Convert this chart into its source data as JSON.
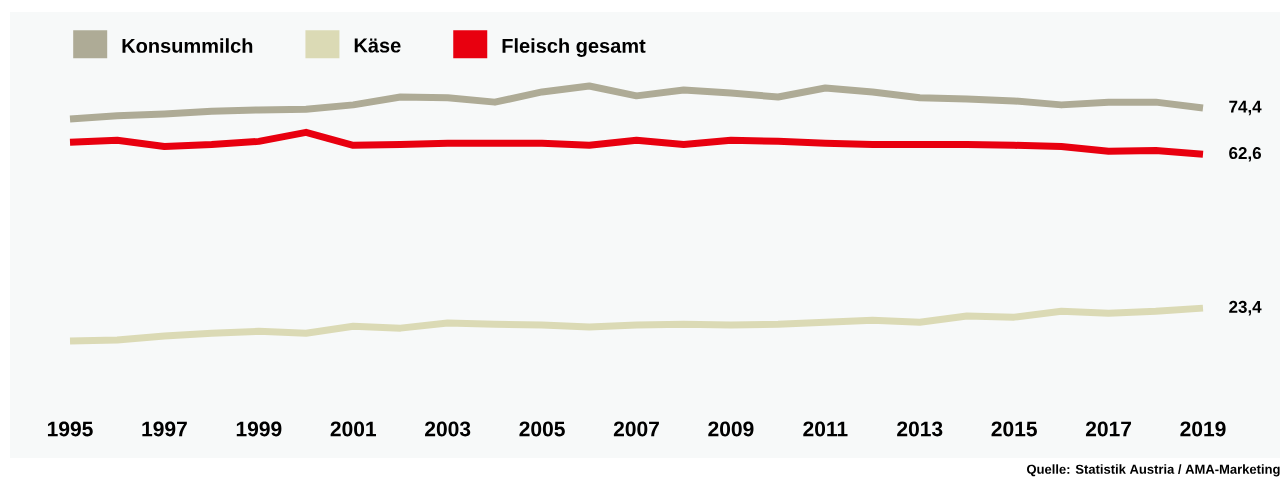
{
  "chart_data": {
    "type": "line",
    "x": [
      1995,
      1996,
      1997,
      1998,
      1999,
      2000,
      2001,
      2002,
      2003,
      2004,
      2005,
      2006,
      2007,
      2008,
      2009,
      2010,
      2011,
      2012,
      2013,
      2014,
      2015,
      2016,
      2017,
      2018,
      2019
    ],
    "xlim": [
      1995,
      2019
    ],
    "xticks": [
      1995,
      1997,
      1999,
      2001,
      2003,
      2005,
      2007,
      2009,
      2011,
      2013,
      2015,
      2017,
      2019
    ],
    "series": [
      {
        "name": "Konsummilch",
        "color": "#aeab96",
        "values": [
          71.6,
          72.4,
          72.9,
          73.6,
          73.9,
          74.1,
          75.2,
          77.2,
          77.0,
          75.9,
          78.5,
          80.0,
          77.5,
          79.0,
          78.2,
          77.2,
          79.5,
          78.5,
          77.0,
          76.7,
          76.2,
          75.2,
          75.9,
          75.9,
          74.4
        ],
        "value_labels": [
          null,
          null,
          null,
          null,
          null,
          null,
          null,
          null,
          null,
          null,
          null,
          null,
          null,
          null,
          null,
          null,
          null,
          null,
          null,
          null,
          null,
          null,
          null,
          null,
          "74,4"
        ]
      },
      {
        "name": "Käse",
        "color": "#dbdab5",
        "values": [
          15.0,
          15.3,
          16.3,
          17.0,
          17.5,
          17.0,
          18.8,
          18.3,
          19.6,
          19.3,
          19.1,
          18.6,
          19.1,
          19.3,
          19.1,
          19.3,
          19.8,
          20.3,
          19.8,
          21.4,
          21.1,
          22.6,
          22.1,
          22.6,
          23.4
        ],
        "value_labels": [
          null,
          null,
          null,
          null,
          null,
          null,
          null,
          null,
          null,
          null,
          null,
          null,
          null,
          null,
          null,
          null,
          null,
          null,
          null,
          null,
          null,
          null,
          null,
          null,
          "23,4"
        ]
      },
      {
        "name": "Fleisch gesamt",
        "color": "#e8000f",
        "values": [
          65.7,
          66.2,
          64.6,
          65.1,
          65.9,
          68.2,
          64.9,
          65.1,
          65.4,
          65.4,
          65.4,
          64.9,
          66.2,
          65.1,
          66.2,
          65.9,
          65.4,
          65.1,
          65.1,
          65.1,
          64.9,
          64.6,
          63.4,
          63.6,
          62.6
        ],
        "value_labels": [
          null,
          null,
          null,
          null,
          null,
          null,
          null,
          null,
          null,
          null,
          null,
          null,
          null,
          null,
          null,
          null,
          null,
          null,
          null,
          null,
          null,
          null,
          null,
          null,
          "62,6"
        ]
      }
    ],
    "annotations": [
      "Quelle: Statistik Austria / AMA-Marketing"
    ],
    "legend": "top left",
    "grid": false,
    "marker": "none",
    "line_style": "solid"
  }
}
